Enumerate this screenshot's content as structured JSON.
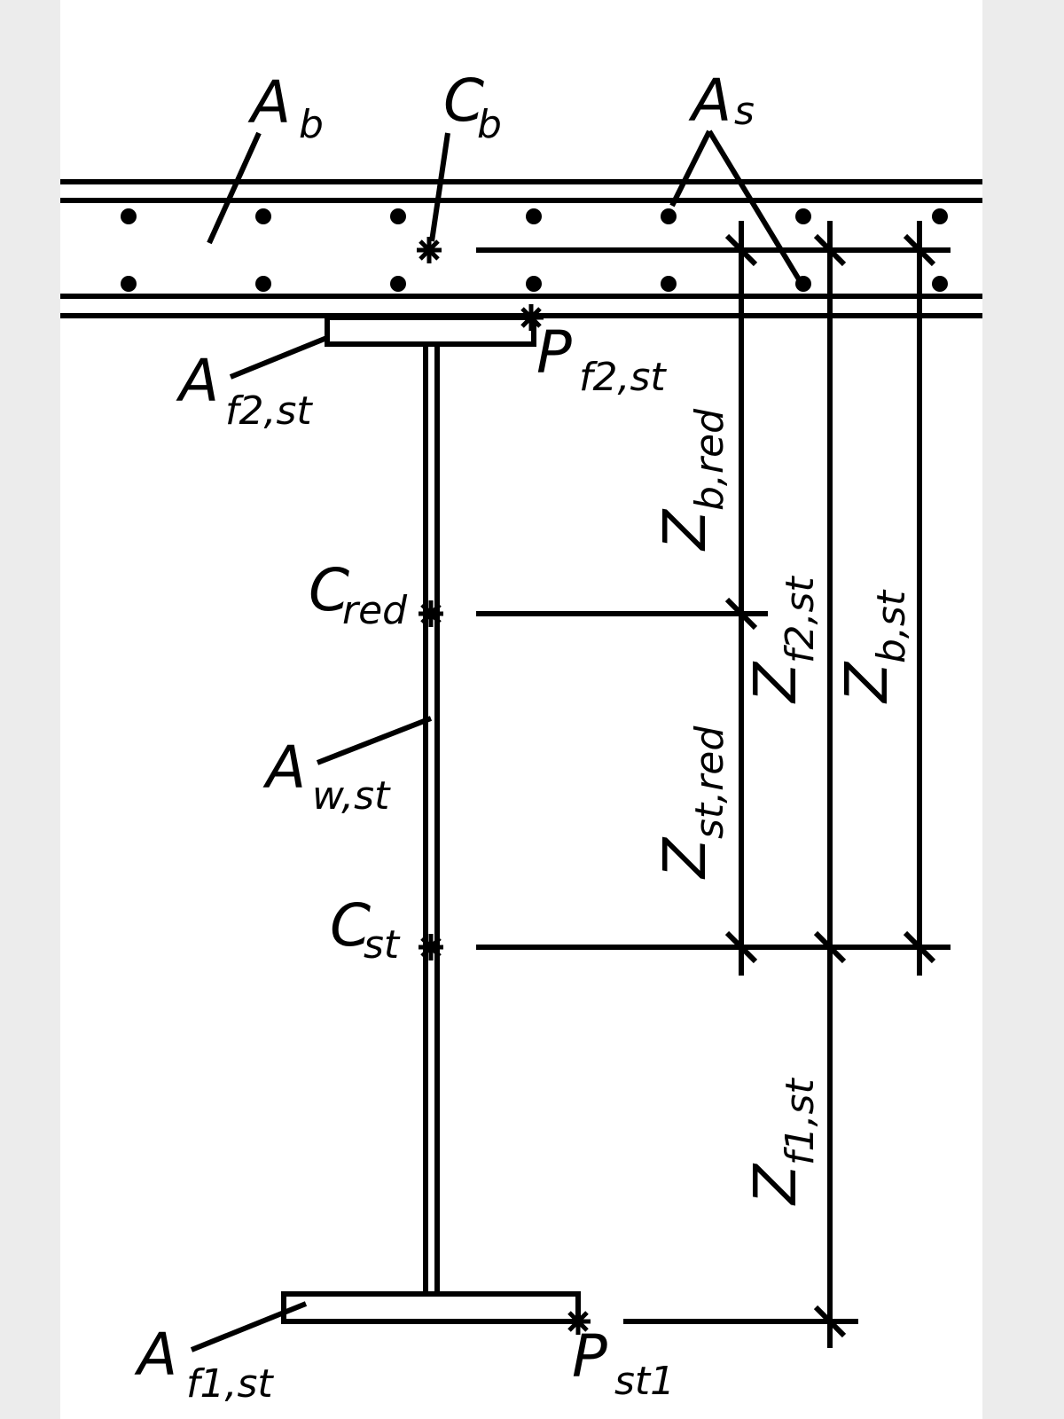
{
  "labels": {
    "A_b": {
      "main": "A",
      "sub": "b"
    },
    "C_b": {
      "main": "C",
      "sub": "b"
    },
    "A_s": {
      "main": "A",
      "sub": "s"
    },
    "A_f2st": {
      "main": "A",
      "sub": "f2,st"
    },
    "P_f2st": {
      "main": "P",
      "sub": "f2,st"
    },
    "C_red": {
      "main": "C",
      "sub": "red"
    },
    "A_wst": {
      "main": "A",
      "sub": "w,st"
    },
    "C_st": {
      "main": "C",
      "sub": "st"
    },
    "A_f1st": {
      "main": "A",
      "sub": "f1,st"
    },
    "P_st1": {
      "main": "P",
      "sub": "st1"
    },
    "Z_bred": {
      "main": "Z",
      "sub": "b,red"
    },
    "Z_f2st": {
      "main": "Z",
      "sub": "f2,st"
    },
    "Z_bst": {
      "main": "Z",
      "sub": "b,st"
    },
    "Z_stred": {
      "main": "Z",
      "sub": "st,red"
    },
    "Z_f1st": {
      "main": "Z",
      "sub": "f1,st"
    }
  },
  "colors": {
    "ink": "#000000",
    "paper": "#ffffff",
    "margin": "#ececec"
  }
}
